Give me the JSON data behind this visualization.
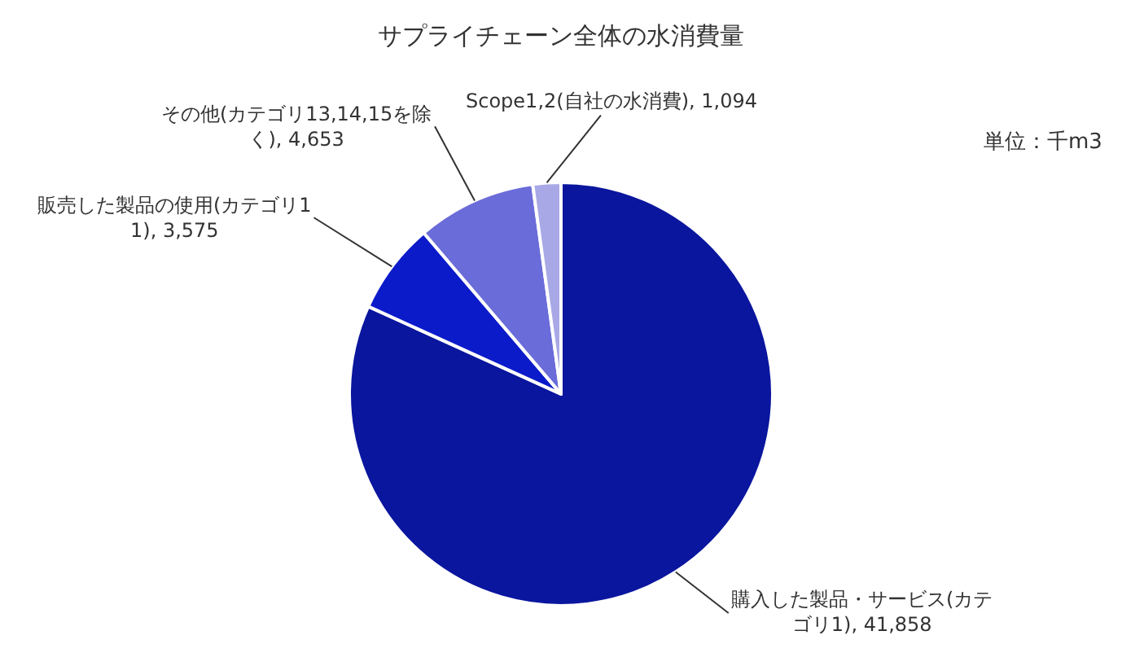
{
  "chart_data": {
    "type": "pie",
    "title": "サプライチェーン全体の水消費量",
    "categories": [
      "購入した製品・サービス(カテゴリ1)",
      "販売した製品の使用(カテゴリ11)",
      "その他(カテゴリ13,14,15を除く)",
      "Scope1,2(自社の水消費)"
    ],
    "values": [
      41858,
      3575,
      4653,
      1094
    ],
    "value_labels": [
      "41,858",
      "3,575",
      "4,653",
      "1,094"
    ],
    "colors": [
      "#0a169e",
      "#0c1bc9",
      "#6a6cd9",
      "#a8a8e6"
    ],
    "annotations": [
      "単位：千m3"
    ],
    "legend": false
  }
}
